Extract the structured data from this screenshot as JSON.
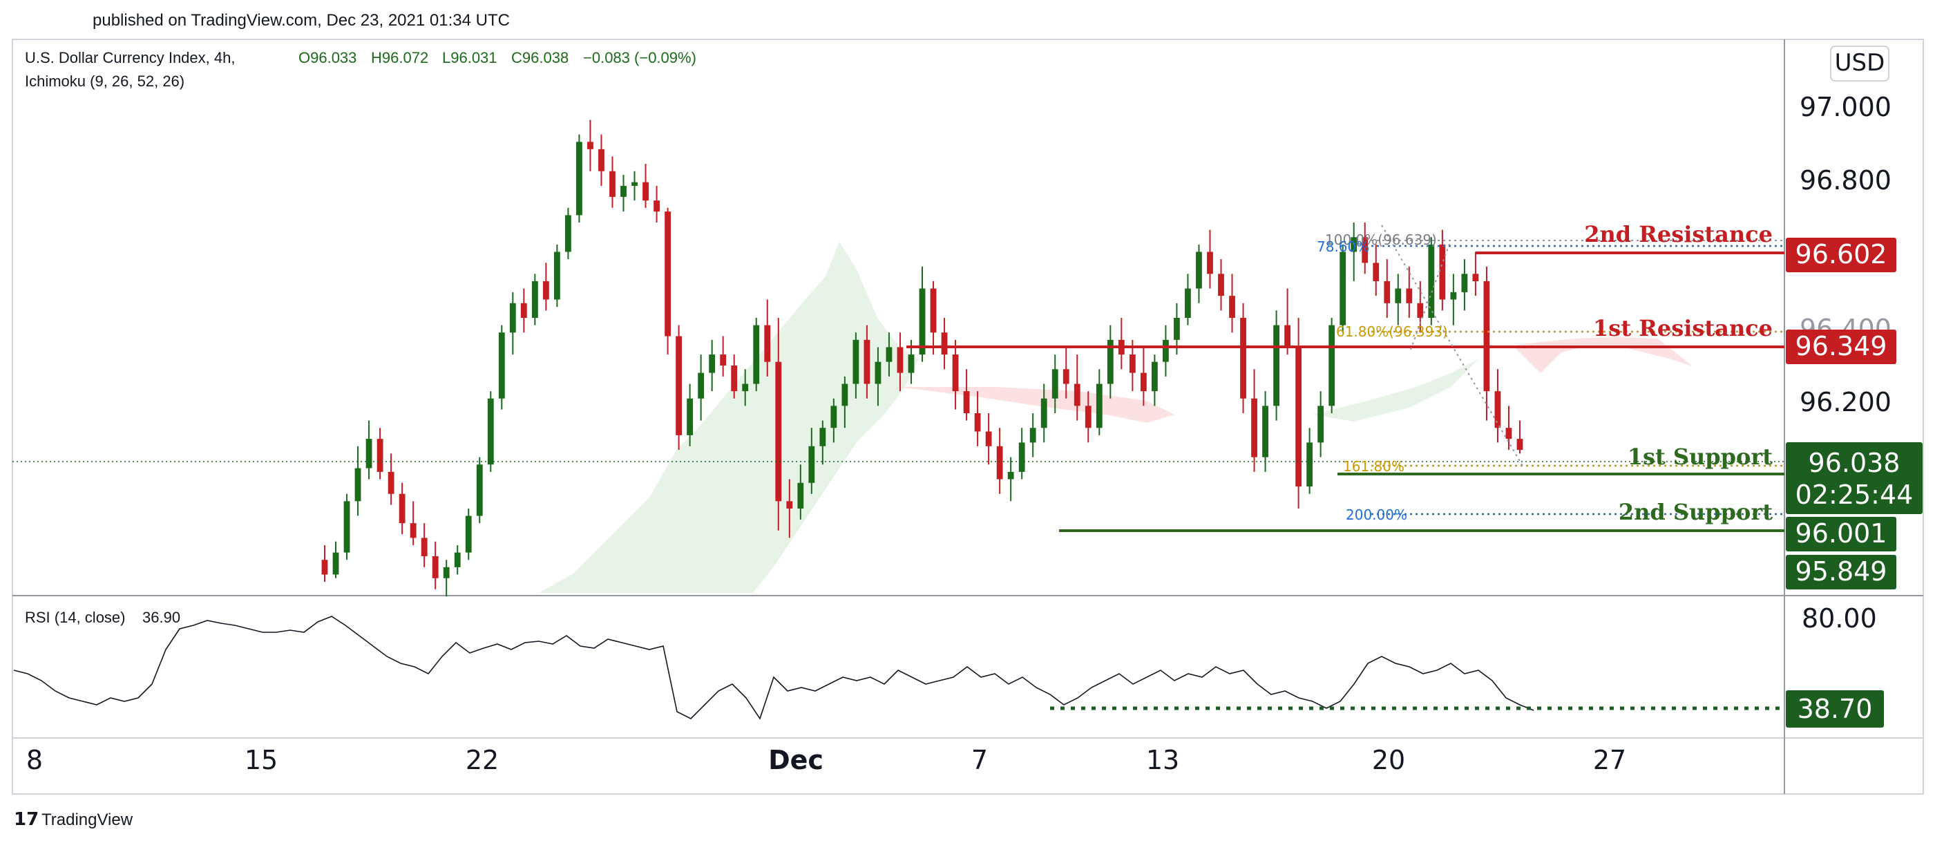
{
  "published": "published on TradingView.com, Dec 23, 2021 01:34 UTC",
  "brand": "TradingView",
  "currency": "USD",
  "legend": {
    "symbol": "U.S. Dollar Currency Index, 4h, ",
    "open": "O96.033",
    "high": "H96.072",
    "low": "L96.031",
    "close": "C96.038",
    "change": "−0.083 (−0.09%)",
    "indicator": "Ichimoku (9, 26, 52, 26)"
  },
  "rsi": {
    "label": "RSI (14, close)",
    "value": "36.90",
    "levels": [
      "80.00"
    ],
    "marker": "38.70"
  },
  "colors": {
    "up": "#1b6b1b",
    "down": "#c41e22",
    "resistance": "#c41e22",
    "support": "#2d6a1f",
    "cloud_up": "#e6f3e6",
    "cloud_down": "#fbe1e1",
    "fib_blue": "#1e6fd9",
    "fib_gold": "#c89b00"
  },
  "price_axis": {
    "ticks": [
      "97.000",
      "96.800",
      "96.400",
      "96.200"
    ],
    "badges": [
      {
        "value": "96.602",
        "color": "#c41e22"
      },
      {
        "value": "96.349",
        "color": "#c41e22"
      },
      {
        "value": "96.038",
        "sub": "02:25:44",
        "color": "#1b5e20"
      },
      {
        "value": "96.001",
        "color": "#1b5e20"
      },
      {
        "value": "95.849",
        "color": "#1b5e20"
      }
    ]
  },
  "levels_text": [
    "2nd Resistance",
    "1st Resistance",
    "1st Support",
    "2nd Support"
  ],
  "fib_labels": [
    "100.0%(96.639)",
    "78.60%",
    "61.80%(96.393)",
    "161.80%",
    "200.00%"
  ],
  "chart_data": {
    "type": "candlestick",
    "ylim": [
      95.65,
      97.15
    ],
    "x_ticks": [
      "8",
      "15",
      "22",
      "Dec",
      "7",
      "13",
      "20",
      "27"
    ],
    "candles": [
      [
        95.74,
        95.78,
        95.68,
        95.7
      ],
      [
        95.7,
        95.79,
        95.69,
        95.76
      ],
      [
        95.76,
        95.92,
        95.74,
        95.9
      ],
      [
        95.9,
        96.05,
        95.86,
        95.99
      ],
      [
        95.99,
        96.12,
        95.96,
        96.07
      ],
      [
        96.07,
        96.1,
        95.96,
        95.98
      ],
      [
        95.98,
        96.03,
        95.89,
        95.92
      ],
      [
        95.92,
        95.95,
        95.81,
        95.84
      ],
      [
        95.84,
        95.9,
        95.78,
        95.8
      ],
      [
        95.8,
        95.84,
        95.72,
        95.75
      ],
      [
        95.75,
        95.79,
        95.66,
        95.69
      ],
      [
        95.69,
        95.74,
        95.64,
        95.72
      ],
      [
        95.72,
        95.78,
        95.7,
        95.76
      ],
      [
        95.76,
        95.88,
        95.74,
        95.86
      ],
      [
        95.86,
        96.02,
        95.84,
        96.0
      ],
      [
        96.0,
        96.2,
        95.98,
        96.18
      ],
      [
        96.18,
        96.38,
        96.15,
        96.36
      ],
      [
        96.36,
        96.47,
        96.3,
        96.44
      ],
      [
        96.44,
        96.48,
        96.36,
        96.4
      ],
      [
        96.4,
        96.52,
        96.38,
        96.5
      ],
      [
        96.5,
        96.55,
        96.42,
        96.45
      ],
      [
        96.45,
        96.6,
        96.43,
        96.58
      ],
      [
        96.58,
        96.7,
        96.56,
        96.68
      ],
      [
        96.68,
        96.9,
        96.66,
        96.88
      ],
      [
        96.88,
        96.94,
        96.8,
        96.86
      ],
      [
        96.86,
        96.9,
        96.76,
        96.8
      ],
      [
        96.8,
        96.84,
        96.7,
        96.73
      ],
      [
        96.73,
        96.79,
        96.69,
        96.76
      ],
      [
        96.76,
        96.8,
        96.72,
        96.77
      ],
      [
        96.77,
        96.82,
        96.7,
        96.72
      ],
      [
        96.72,
        96.76,
        96.66,
        96.69
      ],
      [
        96.69,
        96.7,
        96.3,
        96.35
      ],
      [
        96.35,
        96.38,
        96.04,
        96.08
      ],
      [
        96.08,
        96.22,
        96.05,
        96.18
      ],
      [
        96.18,
        96.3,
        96.12,
        96.25
      ],
      [
        96.25,
        96.34,
        96.2,
        96.3
      ],
      [
        96.3,
        96.35,
        96.24,
        96.27
      ],
      [
        96.27,
        96.3,
        96.18,
        96.2
      ],
      [
        96.2,
        96.26,
        96.16,
        96.22
      ],
      [
        96.22,
        96.4,
        96.2,
        96.38
      ],
      [
        96.38,
        96.45,
        96.24,
        96.28
      ],
      [
        96.28,
        96.4,
        95.82,
        95.9
      ],
      [
        95.9,
        95.96,
        95.8,
        95.88
      ],
      [
        95.88,
        96.0,
        95.85,
        95.95
      ],
      [
        95.95,
        96.1,
        95.92,
        96.05
      ],
      [
        96.05,
        96.12,
        96.0,
        96.1
      ],
      [
        96.1,
        96.18,
        96.06,
        96.16
      ],
      [
        96.16,
        96.24,
        96.1,
        96.22
      ],
      [
        96.22,
        96.36,
        96.18,
        96.34
      ],
      [
        96.34,
        96.38,
        96.18,
        96.22
      ],
      [
        96.22,
        96.32,
        96.16,
        96.28
      ],
      [
        96.28,
        96.36,
        96.24,
        96.32
      ],
      [
        96.32,
        96.36,
        96.2,
        96.25
      ],
      [
        96.25,
        96.34,
        96.22,
        96.3
      ],
      [
        96.3,
        96.54,
        96.28,
        96.48
      ],
      [
        96.48,
        96.5,
        96.3,
        96.36
      ],
      [
        96.36,
        96.4,
        96.26,
        96.3
      ],
      [
        96.3,
        96.34,
        96.15,
        96.2
      ],
      [
        96.2,
        96.26,
        96.12,
        96.14
      ],
      [
        96.14,
        96.2,
        96.05,
        96.09
      ],
      [
        96.09,
        96.14,
        96.0,
        96.05
      ],
      [
        96.05,
        96.1,
        95.92,
        95.96
      ],
      [
        95.96,
        96.02,
        95.9,
        95.98
      ],
      [
        95.98,
        96.1,
        95.96,
        96.06
      ],
      [
        96.06,
        96.14,
        96.02,
        96.1
      ],
      [
        96.1,
        96.22,
        96.06,
        96.18
      ],
      [
        96.18,
        96.3,
        96.14,
        96.26
      ],
      [
        96.26,
        96.32,
        96.18,
        96.22
      ],
      [
        96.22,
        96.3,
        96.12,
        96.16
      ],
      [
        96.16,
        96.2,
        96.06,
        96.1
      ],
      [
        96.1,
        96.26,
        96.08,
        96.22
      ],
      [
        96.22,
        96.38,
        96.18,
        96.34
      ],
      [
        96.34,
        96.4,
        96.26,
        96.3
      ],
      [
        96.3,
        96.34,
        96.2,
        96.25
      ],
      [
        96.25,
        96.32,
        96.16,
        96.2
      ],
      [
        96.2,
        96.3,
        96.16,
        96.28
      ],
      [
        96.28,
        96.38,
        96.24,
        96.34
      ],
      [
        96.34,
        96.44,
        96.3,
        96.4
      ],
      [
        96.4,
        96.52,
        96.38,
        96.48
      ],
      [
        96.48,
        96.6,
        96.44,
        96.58
      ],
      [
        96.58,
        96.64,
        96.48,
        96.52
      ],
      [
        96.52,
        96.56,
        96.42,
        96.46
      ],
      [
        96.46,
        96.52,
        96.36,
        96.4
      ],
      [
        96.4,
        96.44,
        96.14,
        96.18
      ],
      [
        96.18,
        96.26,
        95.98,
        96.02
      ],
      [
        96.02,
        96.2,
        95.98,
        96.16
      ],
      [
        96.16,
        96.42,
        96.12,
        96.38
      ],
      [
        96.38,
        96.48,
        96.3,
        96.32
      ],
      [
        96.32,
        96.4,
        95.88,
        95.94
      ],
      [
        95.94,
        96.1,
        95.92,
        96.06
      ],
      [
        96.06,
        96.2,
        96.02,
        96.16
      ],
      [
        96.16,
        96.4,
        96.14,
        96.38
      ],
      [
        96.38,
        96.6,
        96.36,
        96.58
      ],
      [
        96.58,
        96.66,
        96.5,
        96.62
      ],
      [
        96.62,
        96.66,
        96.52,
        96.55
      ],
      [
        96.55,
        96.6,
        96.46,
        96.5
      ],
      [
        96.5,
        96.56,
        96.4,
        96.44
      ],
      [
        96.44,
        96.52,
        96.38,
        96.48
      ],
      [
        96.48,
        96.54,
        96.4,
        96.44
      ],
      [
        96.44,
        96.5,
        96.36,
        96.4
      ],
      [
        96.4,
        96.62,
        96.38,
        96.6
      ],
      [
        96.6,
        96.64,
        96.42,
        96.45
      ],
      [
        96.45,
        96.52,
        96.38,
        96.47
      ],
      [
        96.47,
        96.56,
        96.42,
        96.52
      ],
      [
        96.52,
        96.58,
        96.46,
        96.5
      ],
      [
        96.5,
        96.54,
        96.12,
        96.2
      ],
      [
        96.2,
        96.26,
        96.06,
        96.1
      ],
      [
        96.1,
        96.16,
        96.04,
        96.07
      ],
      [
        96.07,
        96.12,
        96.03,
        96.04
      ]
    ]
  }
}
